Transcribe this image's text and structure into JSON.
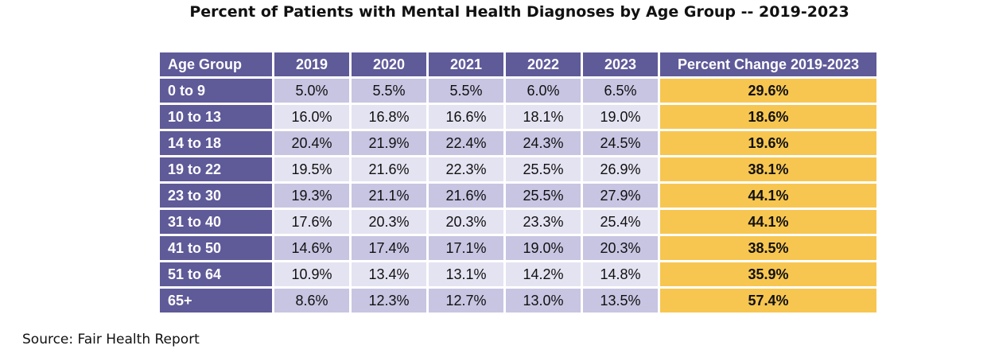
{
  "chart_data": {
    "type": "table",
    "title": "Percent of Patients with Mental Health Diagnoses by Age Group -- 2019-2023",
    "columns": [
      "Age Group",
      "2019",
      "2020",
      "2021",
      "2022",
      "2023",
      "Percent Change 2019-2023"
    ],
    "rows": [
      [
        "0 to 9",
        "5.0%",
        "5.5%",
        "5.5%",
        "6.0%",
        "6.5%",
        "29.6%"
      ],
      [
        "10 to 13",
        "16.0%",
        "16.8%",
        "16.6%",
        "18.1%",
        "19.0%",
        "18.6%"
      ],
      [
        "14 to 18",
        "20.4%",
        "21.9%",
        "22.4%",
        "24.3%",
        "24.5%",
        "19.6%"
      ],
      [
        "19 to 22",
        "19.5%",
        "21.6%",
        "22.3%",
        "25.5%",
        "26.9%",
        "38.1%"
      ],
      [
        "23 to 30",
        "19.3%",
        "21.1%",
        "21.6%",
        "25.5%",
        "27.9%",
        "44.1%"
      ],
      [
        "31 to 40",
        "17.6%",
        "20.3%",
        "20.3%",
        "23.3%",
        "25.4%",
        "44.1%"
      ],
      [
        "41 to 50",
        "14.6%",
        "17.4%",
        "17.1%",
        "19.0%",
        "20.3%",
        "38.5%"
      ],
      [
        "51 to 64",
        "10.9%",
        "13.4%",
        "13.1%",
        "14.2%",
        "14.8%",
        "35.9%"
      ],
      [
        "65+",
        "8.6%",
        "12.3%",
        "12.7%",
        "13.0%",
        "13.5%",
        "57.4%"
      ]
    ],
    "colors": {
      "header": "#5f5a98",
      "row_odd": "#c7c5e2",
      "row_even": "#e4e3f1",
      "highlight": "#f7c651"
    }
  },
  "source": "Source: Fair Health Report"
}
